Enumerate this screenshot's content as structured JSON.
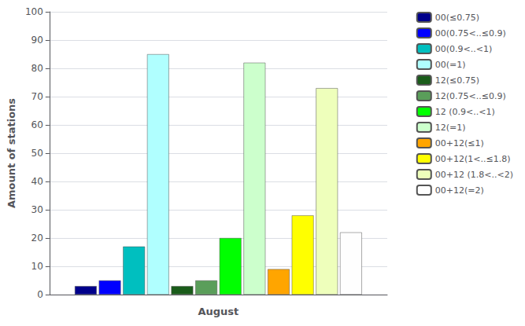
{
  "chart_data": {
    "type": "bar",
    "xlabel": "August",
    "ylabel": "Amount of stations",
    "categories": [
      null
    ],
    "series": [
      {
        "name": "00(≤0.75)",
        "color": "#00008B",
        "values": [
          3
        ]
      },
      {
        "name": "00(0.75<..≤0.9)",
        "color": "#0000FF",
        "values": [
          5
        ]
      },
      {
        "name": "00(0.9<..<1)",
        "color": "#00BFBF",
        "values": [
          17
        ]
      },
      {
        "name": "00(=1)",
        "color": "#B0FFFF",
        "values": [
          85
        ]
      },
      {
        "name": "12(≤0.75)",
        "color": "#1A5C1A",
        "values": [
          3
        ]
      },
      {
        "name": "12(0.75<..≤0.9)",
        "color": "#5A9E5A",
        "values": [
          5
        ]
      },
      {
        "name": "12 (0.9<..<1)",
        "color": "#00FF00",
        "values": [
          20
        ]
      },
      {
        "name": "12(=1)",
        "color": "#CCFFCC",
        "values": [
          82
        ]
      },
      {
        "name": "00+12(≤1)",
        "color": "#FFA500",
        "values": [
          9
        ]
      },
      {
        "name": "00+12(1<..≤1.8)",
        "color": "#FFFF00",
        "values": [
          28
        ]
      },
      {
        "name": "00+12 (1.8<..<2)",
        "color": "#EEFFBB",
        "values": [
          73
        ]
      },
      {
        "name": "00+12(=2)",
        "color": "#FEFEFE",
        "values": [
          22
        ]
      }
    ],
    "ylim": [
      0,
      100
    ],
    "yticks": [
      0,
      10,
      20,
      30,
      40,
      50,
      60,
      70,
      80,
      90,
      100
    ],
    "grid": true,
    "legend": "upper right",
    "tick_labels": "y"
  }
}
